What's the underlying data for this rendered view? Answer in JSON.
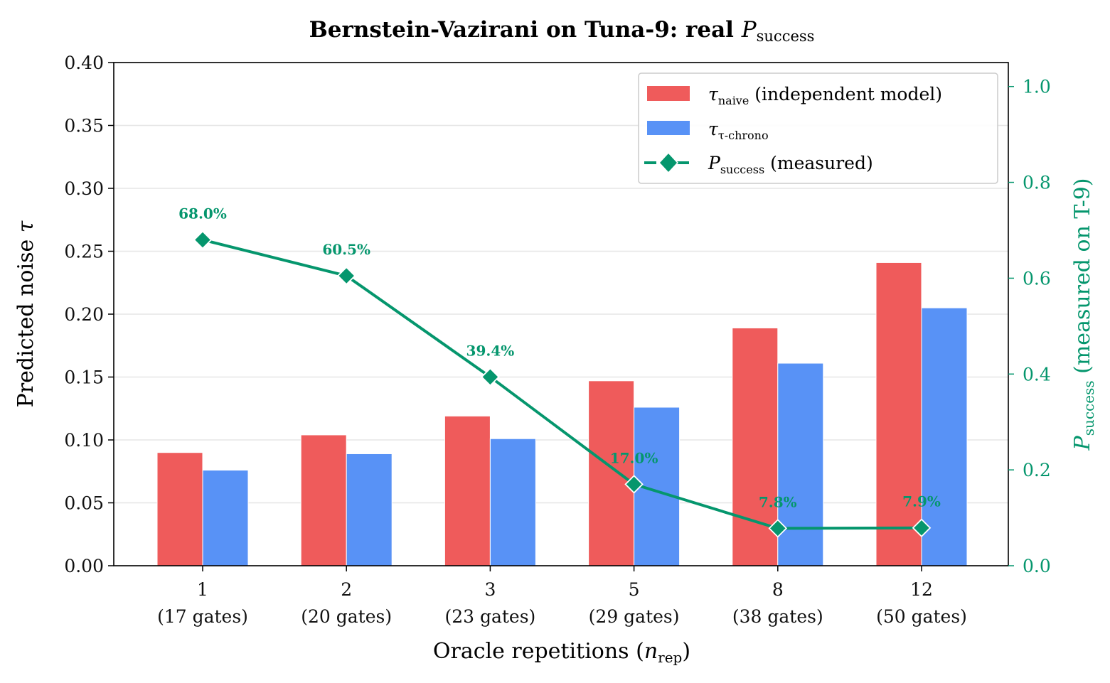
{
  "chart_data": {
    "type": "bar",
    "title": {
      "main": "Bernstein-Vazirani on Tuna-9: real ",
      "math": "P",
      "sub": "success"
    },
    "xlabel": {
      "main": "Oracle repetitions (",
      "math": "n",
      "sub": "rep",
      "end": ")"
    },
    "ylabel": {
      "main": "Predicted noise ",
      "math": "τ"
    },
    "y2label": {
      "math": "P",
      "sub": "success",
      "main": " (measured on T-9)"
    },
    "categories": [
      "1",
      "2",
      "3",
      "5",
      "8",
      "12"
    ],
    "category_sublabels": [
      "(17 gates)",
      "(20 gates)",
      "(23 gates)",
      "(29 gates)",
      "(38 gates)",
      "(50 gates)"
    ],
    "ylim": [
      0,
      0.4
    ],
    "yticks": [
      "0.00",
      "0.05",
      "0.10",
      "0.15",
      "0.20",
      "0.25",
      "0.30",
      "0.35",
      "0.40"
    ],
    "y2lim": [
      0,
      1.05
    ],
    "y2ticks": [
      "0.0",
      "0.2",
      "0.4",
      "0.6",
      "0.8",
      "1.0"
    ],
    "grid": "horizontal",
    "legend_placement": "top-right",
    "series": [
      {
        "name": {
          "math": "τ",
          "sub": "naive",
          "main": " (independent model)"
        },
        "type": "bar",
        "axis": "left",
        "color": "#EF5B5B",
        "values": [
          0.09,
          0.104,
          0.119,
          0.147,
          0.189,
          0.241
        ]
      },
      {
        "name": {
          "math": "τ",
          "sub": "τ-chrono",
          "main": ""
        },
        "type": "bar",
        "axis": "left",
        "color": "#5892F6",
        "values": [
          0.076,
          0.089,
          0.101,
          0.126,
          0.161,
          0.205
        ]
      },
      {
        "name": {
          "math": "P",
          "sub": "success",
          "main": " (measured)"
        },
        "type": "line",
        "marker": "diamond",
        "axis": "right",
        "color": "#05966D",
        "values": [
          0.68,
          0.605,
          0.394,
          0.17,
          0.078,
          0.079
        ],
        "data_labels": [
          "68.0%",
          "60.5%",
          "39.4%",
          "17.0%",
          "7.8%",
          "7.9%"
        ]
      }
    ]
  }
}
